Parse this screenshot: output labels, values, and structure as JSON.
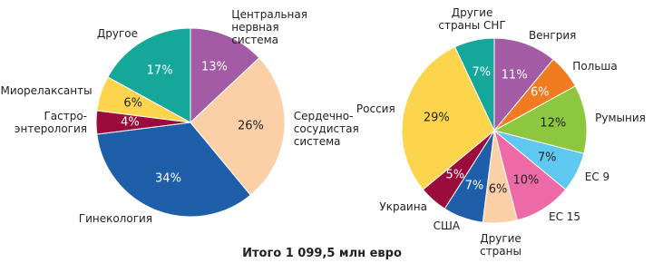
{
  "chart_data": [
    {
      "type": "pie",
      "categories": [
        "Центральная\nнервная\nсистема",
        "Сердечно-\nсосудистая\nсистема",
        "Гинекология",
        "Гастро-\nэнтерология",
        "Миорелаксанты",
        "Другое"
      ],
      "values": [
        13,
        26,
        34,
        4,
        6,
        17
      ],
      "value_labels": [
        "13%",
        "26%",
        "34%",
        "4%",
        "6%",
        "17%"
      ],
      "colors": [
        "#a25ba4",
        "#fcd0a7",
        "#1f5fa9",
        "#9a0c3c",
        "#fdd54c",
        "#15a79a"
      ]
    },
    {
      "type": "pie",
      "categories": [
        "Венгрия",
        "Польша",
        "Румыния",
        "ЕС 9",
        "ЕС 15",
        "Другие\nстраны",
        "США",
        "Украина",
        "Россия",
        "Другие\nстраны СНГ"
      ],
      "values": [
        11,
        6,
        12,
        7,
        10,
        6,
        7,
        5,
        29,
        7
      ],
      "value_labels": [
        "11%",
        "6%",
        "12%",
        "7%",
        "10%",
        "6%",
        "7%",
        "5%",
        "29%",
        "7%"
      ],
      "colors": [
        "#a25ba4",
        "#f07b20",
        "#8dc63f",
        "#5fc8f0",
        "#ee6aa7",
        "#fcd0a7",
        "#1f5fa9",
        "#9a0c3c",
        "#fdd54c",
        "#15a79a"
      ]
    }
  ],
  "footer": "Итого 1 099,5 млн евро"
}
